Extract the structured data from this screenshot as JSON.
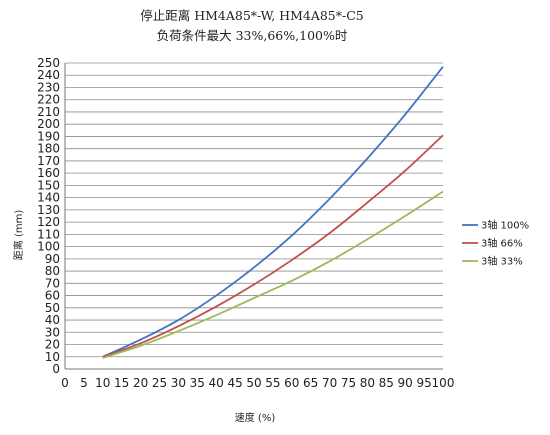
{
  "chart_data": {
    "type": "line",
    "title": "停止距离 HM4A85*-W, HM4A85*-C5",
    "subtitle": "负荷条件最大 33%,66%,100%时",
    "xlabel": "速度 (%)",
    "ylabel": "距离 (mm)",
    "x_ticks": [
      0,
      5,
      10,
      15,
      20,
      25,
      30,
      35,
      40,
      45,
      50,
      55,
      60,
      65,
      70,
      75,
      80,
      85,
      90,
      95,
      100
    ],
    "ylim": [
      0,
      250
    ],
    "y_step": 10,
    "grid": true,
    "legend_position": "right",
    "x": [
      10,
      20,
      30,
      40,
      50,
      60,
      70,
      80,
      90,
      100
    ],
    "series": [
      {
        "name": "3轴 100%",
        "color": "#4472C4",
        "values": [
          10,
          24,
          40,
          60,
          83,
          109,
          139,
          172,
          208,
          247
        ]
      },
      {
        "name": "3轴 66%",
        "color": "#C0504D",
        "values": [
          10,
          21,
          35,
          51,
          69,
          89,
          111,
          136,
          162,
          191
        ]
      },
      {
        "name": "3轴 33%",
        "color": "#9BBB59",
        "values": [
          9,
          19,
          31,
          44,
          58,
          72,
          88,
          106,
          125,
          145
        ]
      }
    ]
  }
}
